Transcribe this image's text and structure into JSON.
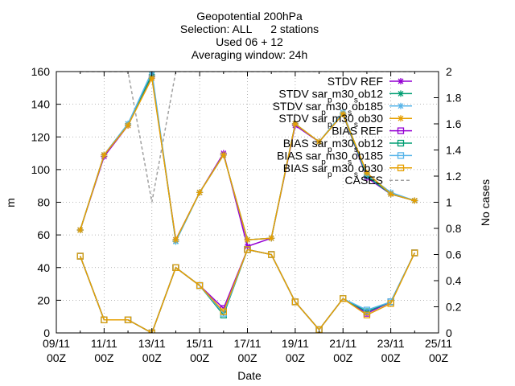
{
  "chart_data": {
    "type": "line",
    "title_lines": [
      "Geopotential 200hPa",
      "Selection: ALL      2 stations",
      "Used 06 + 12",
      "Averaging window: 24h"
    ],
    "xlabel": "Date",
    "ylabel": "m",
    "y2label": "No cases",
    "xlim": [
      0,
      16
    ],
    "ylim": [
      0,
      160
    ],
    "y2lim": [
      0,
      2
    ],
    "grid": true,
    "legend_position": "top-right",
    "x_ticks": [
      {
        "x": 0,
        "line1": "09/11",
        "line2": "00Z"
      },
      {
        "x": 2,
        "line1": "11/11",
        "line2": "00Z"
      },
      {
        "x": 4,
        "line1": "13/11",
        "line2": "00Z"
      },
      {
        "x": 6,
        "line1": "15/11",
        "line2": "00Z"
      },
      {
        "x": 8,
        "line1": "17/11",
        "line2": "00Z"
      },
      {
        "x": 10,
        "line1": "19/11",
        "line2": "00Z"
      },
      {
        "x": 12,
        "line1": "21/11",
        "line2": "00Z"
      },
      {
        "x": 14,
        "line1": "23/11",
        "line2": "00Z"
      },
      {
        "x": 16,
        "line1": "25/11",
        "line2": "00Z"
      }
    ],
    "y_ticks": [
      0,
      20,
      40,
      60,
      80,
      100,
      120,
      140,
      160
    ],
    "y2_ticks": [
      {
        "v": 0,
        "label": "0"
      },
      {
        "v": 0.2,
        "label": "0.2"
      },
      {
        "v": 0.4,
        "label": "0.4"
      },
      {
        "v": 0.6,
        "label": "0.6"
      },
      {
        "v": 0.8,
        "label": "0.8"
      },
      {
        "v": 1,
        "label": "1"
      },
      {
        "v": 1.2,
        "label": "1.2"
      },
      {
        "v": 1.4,
        "label": "1.4"
      },
      {
        "v": 1.6,
        "label": "1.6"
      },
      {
        "v": 1.8,
        "label": "1.8"
      },
      {
        "v": 2,
        "label": "2"
      }
    ],
    "x": [
      1,
      2,
      3,
      4,
      5,
      6,
      7,
      8,
      9,
      10,
      11,
      12,
      13,
      14,
      15
    ],
    "series": [
      {
        "name": "STDV REF",
        "color": "#9400d3",
        "marker": "star",
        "values": [
          63,
          108,
          127,
          157,
          57,
          86,
          110,
          53,
          58,
          127,
          117,
          134,
          95,
          85,
          81
        ]
      },
      {
        "name": "STDV sar_pm30_sob12",
        "color": "#009e73",
        "marker": "star",
        "values": [
          63,
          109,
          128,
          158,
          56,
          86,
          109,
          57,
          58,
          128,
          117,
          134,
          96,
          85,
          81
        ]
      },
      {
        "name": "STDV sar_pm30_sob185",
        "color": "#56b4e9",
        "marker": "star",
        "values": [
          63,
          109,
          128,
          160,
          56,
          86,
          109,
          57,
          58,
          128,
          117,
          135,
          97,
          86,
          81
        ]
      },
      {
        "name": "STDV sar_pm30_sob30",
        "color": "#e69f00",
        "marker": "star",
        "values": [
          63,
          109,
          127,
          156,
          57,
          86,
          109,
          57,
          58,
          128,
          117,
          134,
          98,
          85,
          81
        ]
      },
      {
        "name": "BIAS REF",
        "color": "#9400d3",
        "marker": "square",
        "values": [
          47,
          8,
          8,
          0,
          40,
          29,
          15,
          51,
          48,
          19,
          2,
          21,
          12,
          19,
          49
        ]
      },
      {
        "name": "BIAS sar_pm30_sob12",
        "color": "#009e73",
        "marker": "square",
        "values": [
          47,
          8,
          8,
          0,
          40,
          29,
          11,
          51,
          48,
          19,
          2,
          21,
          13,
          19,
          49
        ]
      },
      {
        "name": "BIAS sar_pm30_sob185",
        "color": "#56b4e9",
        "marker": "square",
        "values": [
          47,
          8,
          8,
          0,
          40,
          29,
          12,
          51,
          48,
          19,
          2,
          21,
          14,
          19,
          49
        ]
      },
      {
        "name": "BIAS sar_pm30_sob30",
        "color": "#e69f00",
        "marker": "square",
        "values": [
          47,
          8,
          8,
          0,
          40,
          29,
          13,
          51,
          48,
          19,
          2,
          21,
          11,
          18,
          49
        ]
      }
    ],
    "cases_series": {
      "name": "CASES",
      "color": "#a0a0a0",
      "axis": "y2",
      "values": [
        2,
        2,
        2,
        1,
        2,
        2,
        2,
        2,
        2,
        2,
        2,
        2,
        2,
        2,
        2
      ]
    }
  }
}
